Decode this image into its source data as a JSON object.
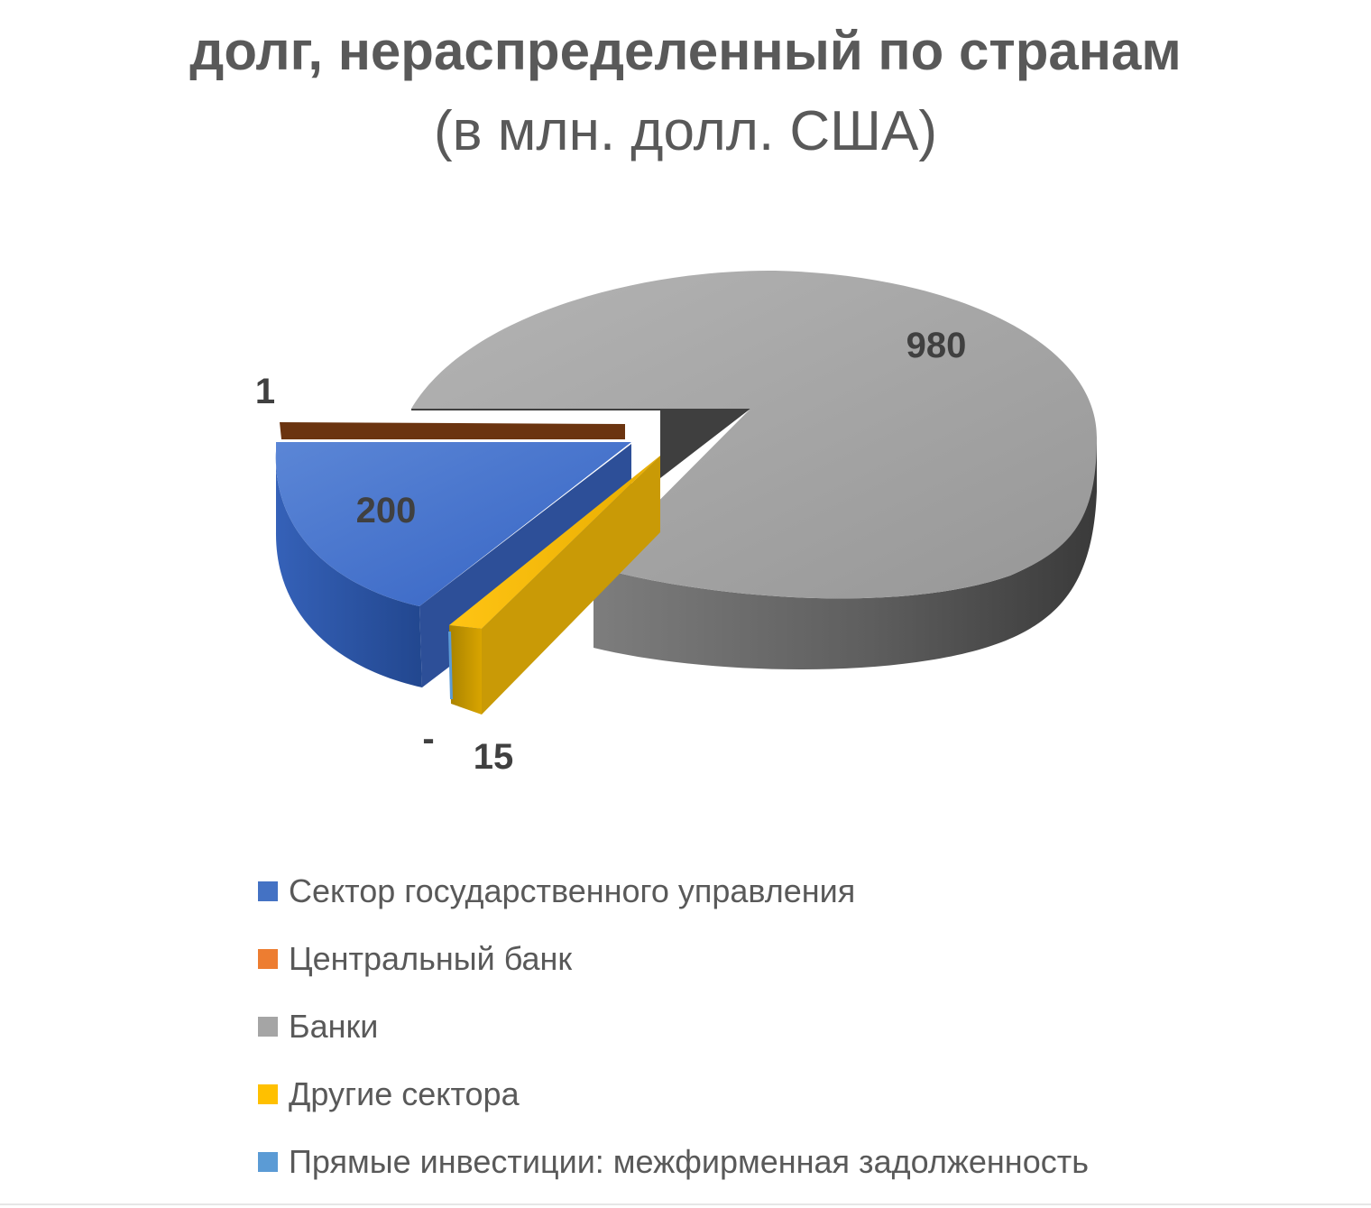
{
  "title": "долг, нераспределенный по странам",
  "subtitle": "(в млн. долл. США)",
  "chart_data": {
    "type": "pie",
    "style": "3d-exploded",
    "legend_position": "bottom",
    "slices": [
      {
        "name": "Сектор государственного управления",
        "value": 200,
        "label": "200",
        "color": "#4472c4"
      },
      {
        "name": "Центральный банк",
        "value": 1,
        "label": "1",
        "color": "#ed7d31"
      },
      {
        "name": "Банки",
        "value": 980,
        "label": "980",
        "color": "#a5a5a5"
      },
      {
        "name": "Другие сектора",
        "value": 15,
        "label": "15",
        "color": "#ffc000"
      },
      {
        "name": "Прямые инвестиции: межфирменная задолженность",
        "value": 0,
        "label": "-",
        "color": "#5b9bd5"
      }
    ]
  }
}
